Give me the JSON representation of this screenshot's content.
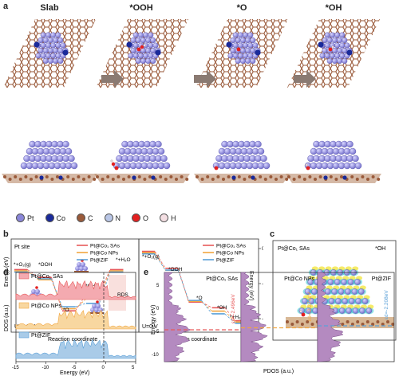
{
  "panel_a": {
    "letter": "a",
    "states": [
      "Slab",
      "*OOH",
      "*O",
      "*OH"
    ],
    "legend": [
      {
        "symbol": "Pt",
        "label": "Pt",
        "color": "#8a86d8"
      },
      {
        "symbol": "Co",
        "label": "Co",
        "color": "#1a2a9a"
      },
      {
        "symbol": "C",
        "label": "C",
        "color": "#9a5a3a"
      },
      {
        "symbol": "N",
        "label": "N",
        "color": "#b9c6e6"
      },
      {
        "symbol": "O",
        "label": "O",
        "color": "#e32020"
      },
      {
        "symbol": "H",
        "label": "H",
        "color": "#f4dfe3"
      }
    ]
  },
  "panel_b": {
    "letter": "b",
    "left": {
      "site": "Pt site",
      "potential": "U=1.23 V",
      "ylabel": "Energy (eV)",
      "xlabel": "Reaction coordinate",
      "annotations": [
        "*+O₂(g)",
        "*OOH",
        "*O",
        "*OH",
        "*+H₂O",
        "RDS"
      ],
      "legend": [
        "Pt@Co₁ SAs",
        "Pt@Co NPs",
        "Pt@ZIF"
      ]
    },
    "right": {
      "potential": "U=0 V",
      "ylabel": "Energy (eV)",
      "xlabel": "Reaction coordinate",
      "yticks": [
        "0",
        "-2",
        "-4"
      ],
      "annotations": [
        "*+O₂(g)",
        "*OOH",
        "*O",
        "*OH",
        "*+H₂O"
      ],
      "legend": [
        "Pt@Co₁ SAs",
        "Pt@Co NPs",
        "Pt@ZIF"
      ]
    }
  },
  "panel_c": {
    "letter": "c",
    "title": "Pt@Co₁ SAs",
    "state": "*OH"
  },
  "panel_d": {
    "letter": "d",
    "ylabel": "DOS (a.u.)",
    "xlabel": "Energy (eV)",
    "series": [
      "Pt@Co₁ SAs",
      "Pt@Co NPs",
      "Pt@ZIF"
    ],
    "xticks": [
      "-15",
      "-10",
      "-5",
      "0",
      "5"
    ]
  },
  "panel_e": {
    "letter": "e",
    "ylabel": "Energy (eV)",
    "xlabel": "PDOS (a.u.)",
    "yticks": [
      "5",
      "0",
      "-5",
      "-10"
    ],
    "panels": [
      {
        "title": "Pt@Co₁ SAs",
        "dband": "εd=-2.496eV",
        "color": "#e85a5a"
      },
      {
        "title": "Pt@Co NPs",
        "dband": "εd=-2.274eV",
        "color": "#f2a640"
      },
      {
        "title": "Pt@ZIF",
        "dband": "εd=-2.208eV",
        "color": "#5aa0d8"
      }
    ]
  },
  "chart_data": [
    {
      "type": "line",
      "title": "",
      "xlabel": "Reaction coordinate",
      "ylabel": "Energy (eV)",
      "categories": [
        "*+O₂(g)",
        "*OOH",
        "*O",
        "*OH",
        "*+H₂O"
      ],
      "series": [
        {
          "name": "Pt@Co₁ SAs",
          "values": [
            0.0,
            -0.35,
            -1.85,
            -1.1,
            0.0
          ]
        },
        {
          "name": "Pt@Co NPs",
          "values": [
            0.0,
            -0.4,
            -1.7,
            -1.25,
            0.0
          ]
        },
        {
          "name": "Pt@ZIF",
          "values": [
            0.0,
            -0.3,
            -1.55,
            -1.4,
            0.0
          ]
        }
      ],
      "note": "U=1.23 V"
    },
    {
      "type": "line",
      "title": "",
      "xlabel": "Reaction coordinate",
      "ylabel": "Energy (eV)",
      "categories": [
        "*+O₂(g)",
        "*OOH",
        "*O",
        "*OH",
        "*+H₂O"
      ],
      "series": [
        {
          "name": "Pt@Co₁ SAs",
          "values": [
            0.0,
            -1.2,
            -3.6,
            -4.0,
            -4.92
          ]
        },
        {
          "name": "Pt@Co NPs",
          "values": [
            0.0,
            -1.25,
            -3.45,
            -4.15,
            -4.92
          ]
        },
        {
          "name": "Pt@ZIF",
          "values": [
            0.0,
            -1.15,
            -3.3,
            -4.25,
            -4.92
          ]
        }
      ],
      "ylim": [
        -5,
        0.5
      ],
      "note": "U=0 V"
    }
  ],
  "colors": {
    "sas": "#e85a5a",
    "nps": "#f2a640",
    "zif": "#5aa0d8",
    "pt": "#8a86d8",
    "c": "#9a5a3a",
    "co": "#1a2a9a"
  }
}
